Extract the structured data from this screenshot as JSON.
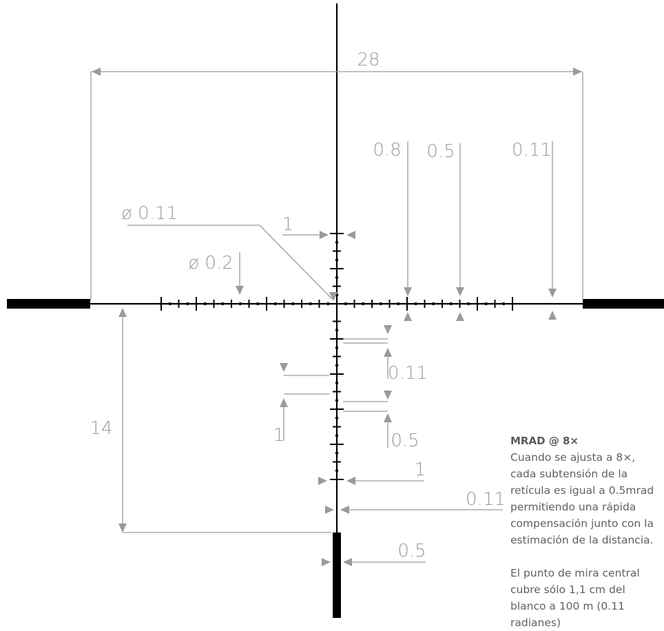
{
  "dimensions": {
    "total_width": "28",
    "dot_spacing": "0.8",
    "tick_spacing": "0.5",
    "line_thickness_right": "0.11",
    "center_dot_diameter": "ø 0.11",
    "dot_diameter": "ø 0.2",
    "vertical_tick_width": "1",
    "vertical_gap_small": "0.11",
    "vertical_gap_half": "0.5",
    "vertical_tick_height": "1",
    "bottom_tick_width": "1",
    "line_thickness_bottom": "0.11",
    "lower_post_distance": "14",
    "post_width": "0.5"
  },
  "info": {
    "heading": "MRAD @ 8×",
    "paragraph1": "Cuando se ajusta a 8×, cada subtensión de la retícula es igual a 0.5mrad permitiendo una rápida compensación junto con la estimación de la distancia.",
    "paragraph2": "El punto de mira central cubre sólo 1,1 cm del blanco a 100 m (0.11 radianes)"
  },
  "colors": {
    "reticle": "#000000",
    "dimension": "#9a9a9a",
    "text": "#5f5f5f"
  }
}
